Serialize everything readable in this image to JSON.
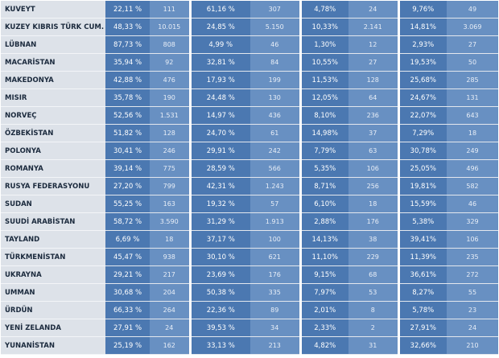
{
  "table": {
    "rows": [
      [
        "KUVEYT",
        "22,11 %",
        "111",
        "61,16 %",
        "307",
        "4,78%",
        "24",
        "9,76%",
        "49"
      ],
      [
        "KUZEY KIBRIS TÜRK CUM.",
        "48,33 %",
        "10.015",
        "24,85 %",
        "5.150",
        "10,33%",
        "2.141",
        "14,81%",
        "3.069"
      ],
      [
        "LÜBNAN",
        "87,73 %",
        "808",
        "4,99 %",
        "46",
        "1,30%",
        "12",
        "2,93%",
        "27"
      ],
      [
        "MACARİSTAN",
        "35,94 %",
        "92",
        "32,81 %",
        "84",
        "10,55%",
        "27",
        "19,53%",
        "50"
      ],
      [
        "MAKEDONYA",
        "42,88 %",
        "476",
        "17,93 %",
        "199",
        "11,53%",
        "128",
        "25,68%",
        "285"
      ],
      [
        "MISIR",
        "35,78 %",
        "190",
        "24,48 %",
        "130",
        "12,05%",
        "64",
        "24,67%",
        "131"
      ],
      [
        "NORVEÇ",
        "52,56 %",
        "1.531",
        "14,97 %",
        "436",
        "8,10%",
        "236",
        "22,07%",
        "643"
      ],
      [
        "ÖZBEKİSTAN",
        "51,82 %",
        "128",
        "24,70 %",
        "61",
        "14,98%",
        "37",
        "7,29%",
        "18"
      ],
      [
        "POLONYA",
        "30,41 %",
        "246",
        "29,91 %",
        "242",
        "7,79%",
        "63",
        "30,78%",
        "249"
      ],
      [
        "ROMANYA",
        "39,14 %",
        "775",
        "28,59 %",
        "566",
        "5,35%",
        "106",
        "25,05%",
        "496"
      ],
      [
        "RUSYA FEDERASYONU",
        "27,20 %",
        "799",
        "42,31 %",
        "1.243",
        "8,71%",
        "256",
        "19,81%",
        "582"
      ],
      [
        "SUDAN",
        "55,25 %",
        "163",
        "19,32 %",
        "57",
        "6,10%",
        "18",
        "15,59%",
        "46"
      ],
      [
        "SUUDİ ARABİSTAN",
        "58,72 %",
        "3.590",
        "31,29 %",
        "1.913",
        "2,88%",
        "176",
        "5,38%",
        "329"
      ],
      [
        "TAYLAND",
        "6,69 %",
        "18",
        "37,17 %",
        "100",
        "14,13%",
        "38",
        "39,41%",
        "106"
      ],
      [
        "TÜRKMENİSTAN",
        "45,47 %",
        "938",
        "30,10 %",
        "621",
        "11,10%",
        "229",
        "11,39%",
        "235"
      ],
      [
        "UKRAYNA",
        "29,21 %",
        "217",
        "23,69 %",
        "176",
        "9,15%",
        "68",
        "36,61%",
        "272"
      ],
      [
        "UMMAN",
        "30,68 %",
        "204",
        "50,38 %",
        "335",
        "7,97%",
        "53",
        "8,27%",
        "55"
      ],
      [
        "ÜRDÜN",
        "66,33 %",
        "264",
        "22,36 %",
        "89",
        "2,01%",
        "8",
        "5,78%",
        "23"
      ],
      [
        "YENİ ZELANDA",
        "27,91 %",
        "24",
        "39,53 %",
        "34",
        "2,33%",
        "2",
        "27,91%",
        "24"
      ],
      [
        "YUNANİSTAN",
        "25,19 %",
        "162",
        "33,13 %",
        "213",
        "4,82%",
        "31",
        "32,66%",
        "210"
      ]
    ]
  }
}
